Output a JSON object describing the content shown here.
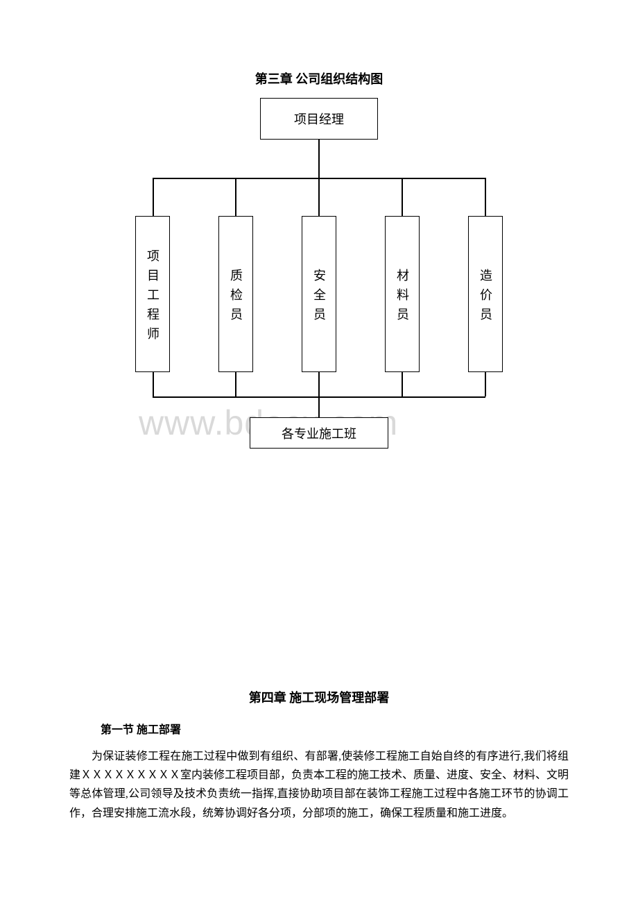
{
  "chapter3": {
    "title": "第三章 公司组织结构图",
    "org": {
      "top": "项目经理",
      "roles": [
        "项目工程师",
        "质检员",
        "安全员",
        "材料员",
        "造价员"
      ],
      "bottom": "各专业施工班"
    }
  },
  "watermark": "www.bdocx.com",
  "chapter4": {
    "title": "第四章 施工现场管理部署",
    "section1": {
      "title": "第一节 施工部署",
      "body": "为保证装修工程在施工过程中做到有组织、有部署,使装修工程施工自始自终的有序进行,我们将组建ＸＸＸＸＸＸＸＸＸ室内装修工程项目部，负责本工程的施工技术、质量、进度、安全、材料、文明等总体管理,公司领导及技术负责统一指挥,直接协助项目部在装饰工程施工过程中各施工环节的协调工作，合理安排施工流水段，统筹协调好各分项，分部项的施工，确保工程质量和施工进度。"
    }
  },
  "styles": {
    "background_color": "#ffffff",
    "text_color": "#000000",
    "border_color": "#000000",
    "watermark_color": "#d9d9d9",
    "title_fontsize": 18,
    "body_fontsize": 16,
    "watermark_fontsize": 50
  }
}
